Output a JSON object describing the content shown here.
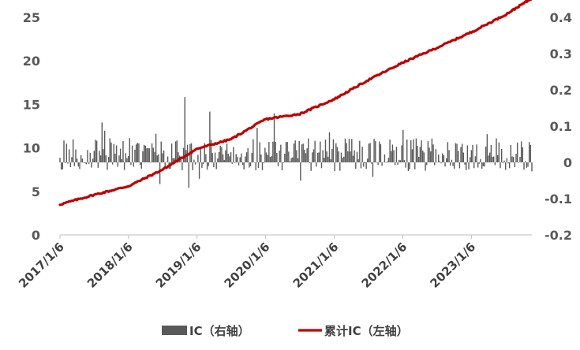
{
  "chart_data": {
    "type": "bar+line",
    "title": "",
    "xlabel": "",
    "ylabel_left": "",
    "ylabel_right": "",
    "left_axis": {
      "min": 0,
      "max": 25,
      "ticks": [
        "0",
        "5",
        "10",
        "15",
        "20",
        "25"
      ]
    },
    "right_axis": {
      "min": -0.2,
      "max": 0.4,
      "ticks": [
        "-0.2",
        "-0.1",
        "0",
        "0.1",
        "0.2",
        "0.3",
        "0.4"
      ]
    },
    "x_axis": {
      "start": "2017/1/6",
      "end": "2023/11/24",
      "ticks": [
        "2017/1/6",
        "2018/1/6",
        "2019/1/6",
        "2020/1/6",
        "2021/1/6",
        "2022/1/6",
        "2023/1/6"
      ]
    },
    "grid": false,
    "legend_position": "bottom",
    "series": [
      {
        "name": "IC（右轴）",
        "kind": "bar",
        "axis": "right",
        "color": "#595959",
        "frequency": "weekly",
        "range_observed": [
          -0.07,
          0.18
        ],
        "typical_range": [
          -0.02,
          0.07
        ]
      },
      {
        "name": "累计IC（左轴）",
        "kind": "line",
        "axis": "left",
        "color": "#C00000",
        "x": [
          "2017/1/6",
          "2017/7/6",
          "2018/1/6",
          "2018/7/6",
          "2019/1/6",
          "2019/7/6",
          "2020/1/6",
          "2020/7/6",
          "2021/1/6",
          "2021/7/6",
          "2022/1/6",
          "2022/7/6",
          "2023/1/6",
          "2023/7/6",
          "2023/11/24"
        ],
        "y": [
          3.5,
          4.6,
          5.6,
          7.5,
          9.9,
          11.0,
          13.3,
          13.9,
          15.6,
          17.8,
          19.8,
          21.5,
          23.3,
          25.3,
          27.2
        ]
      }
    ]
  }
}
